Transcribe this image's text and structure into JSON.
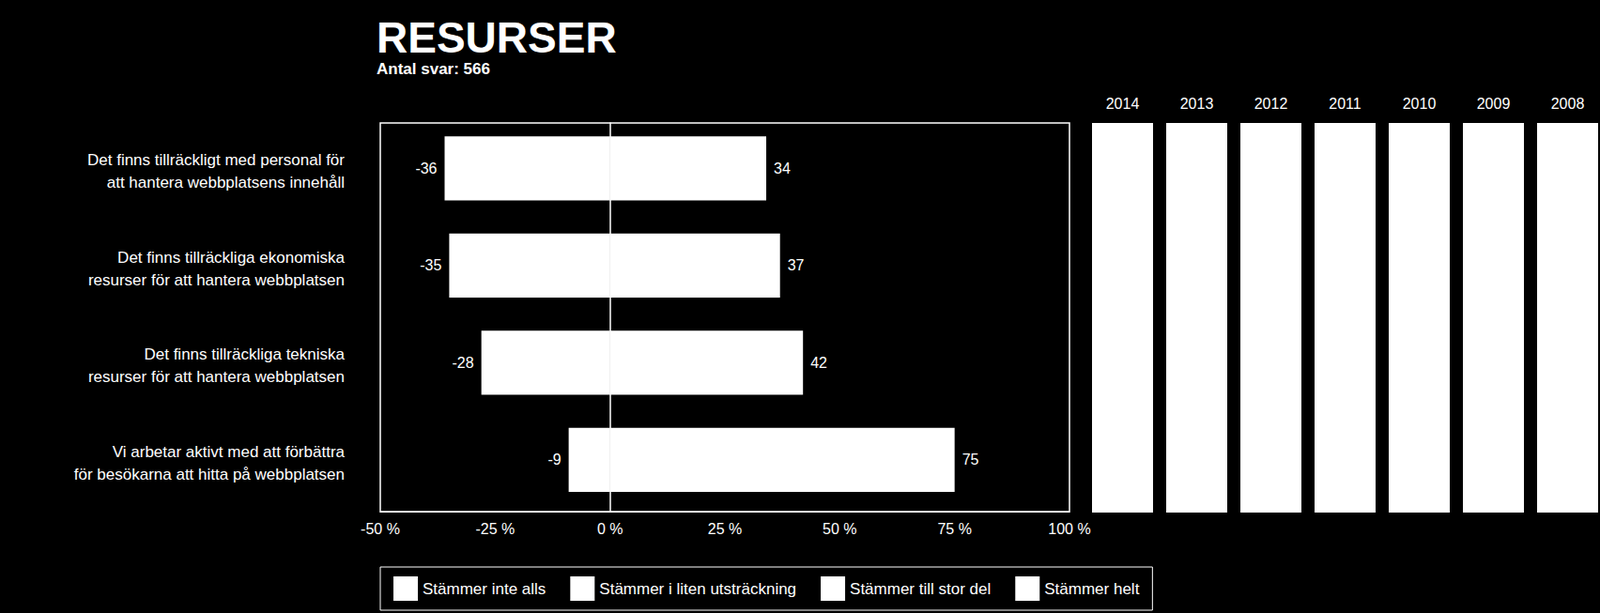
{
  "chart_data": {
    "type": "bar",
    "orientation": "horizontal",
    "title": "RESURSER",
    "subtitle": "Antal svar: 566",
    "categories": [
      "Det finns tillräckligt med personal för\natt hantera webbplatsens innehåll",
      "Det finns tillräckliga ekonomiska\nresurser för att hantera webbplatsen",
      "Det finns tillräckliga tekniska\nresurser för att hantera webbplatsen",
      "Vi arbetar aktivt med att förbättra\nför besökarna att hitta på webbplatsen"
    ],
    "series": [
      {
        "color": "#ffffff",
        "values": [
          -36,
          -35,
          -28,
          -9
        ]
      },
      {
        "color": "#ffffff",
        "values": [
          34,
          37,
          42,
          75
        ]
      }
    ],
    "stacked": true,
    "data_labels": true,
    "grid": false,
    "xlim": [
      -50,
      100
    ],
    "xticks": [
      {
        "value": -50,
        "label": "-50 %"
      },
      {
        "value": -25,
        "label": "-25 %"
      },
      {
        "value": 0,
        "label": "0 %"
      },
      {
        "value": 25,
        "label": "25 %"
      },
      {
        "value": 50,
        "label": "50 %"
      },
      {
        "value": 75,
        "label": "75 %"
      },
      {
        "value": 100,
        "label": "100 %"
      }
    ],
    "legend_entries": [
      {
        "name": "Stämmer inte alls",
        "color": "#ffffff"
      },
      {
        "name": "Stämmer i liten utsträckning",
        "color": "#ffffff"
      },
      {
        "name": "Stämmer till stor del",
        "color": "#ffffff"
      },
      {
        "name": "Stämmer helt",
        "color": "#ffffff"
      }
    ],
    "years": [
      "2014",
      "2013",
      "2012",
      "2011",
      "2010",
      "2009",
      "2008"
    ]
  }
}
